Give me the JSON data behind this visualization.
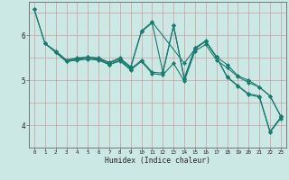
{
  "title": "",
  "xlabel": "Humidex (Indice chaleur)",
  "bg_color": "#cce8e4",
  "line_color": "#1a7a6e",
  "xlim": [
    -0.5,
    23.5
  ],
  "ylim": [
    3.5,
    6.75
  ],
  "xticks": [
    0,
    1,
    2,
    3,
    4,
    5,
    6,
    7,
    8,
    9,
    10,
    11,
    12,
    13,
    14,
    15,
    16,
    17,
    18,
    19,
    20,
    21,
    22,
    23
  ],
  "yticks": [
    4,
    5,
    6
  ],
  "lines": [
    {
      "x": [
        0,
        1,
        2,
        3,
        4,
        5,
        6,
        7,
        8,
        9,
        10,
        11,
        12,
        13,
        14,
        15,
        16,
        17,
        18,
        19,
        20,
        21,
        22,
        23
      ],
      "y": [
        6.58,
        5.82,
        5.65,
        5.45,
        5.48,
        5.52,
        5.48,
        5.38,
        5.48,
        5.28,
        6.08,
        6.28,
        5.18,
        6.22,
        5.05,
        5.72,
        5.88,
        5.52,
        5.08,
        4.88,
        4.7,
        4.65,
        3.86,
        4.18
      ]
    },
    {
      "x": [
        1,
        2,
        3,
        4,
        5,
        6,
        7,
        8,
        9,
        10,
        11,
        14,
        15,
        16,
        17,
        18,
        19,
        20,
        21,
        22,
        23
      ],
      "y": [
        5.82,
        5.65,
        5.45,
        5.5,
        5.52,
        5.5,
        5.4,
        5.5,
        5.3,
        6.1,
        6.3,
        5.38,
        5.7,
        5.87,
        5.52,
        5.35,
        5.1,
        5.0,
        4.85,
        4.65,
        4.2
      ]
    },
    {
      "x": [
        2,
        3,
        4,
        5,
        6,
        7,
        8,
        9,
        10,
        11,
        12,
        13,
        14,
        15,
        16,
        17,
        18,
        19,
        20,
        21,
        22,
        23
      ],
      "y": [
        5.63,
        5.42,
        5.47,
        5.49,
        5.47,
        5.35,
        5.45,
        5.25,
        5.45,
        5.18,
        5.16,
        6.22,
        5.02,
        5.72,
        5.87,
        5.52,
        5.07,
        4.87,
        4.68,
        4.63,
        3.84,
        4.15
      ]
    },
    {
      "x": [
        0,
        1,
        2,
        3,
        4,
        5,
        6,
        7,
        8,
        9,
        10,
        11,
        12,
        13,
        14,
        15,
        16,
        17,
        18,
        19,
        20,
        21,
        22,
        23
      ],
      "y": [
        6.58,
        5.82,
        5.62,
        5.42,
        5.45,
        5.47,
        5.45,
        5.35,
        5.43,
        5.23,
        5.42,
        5.15,
        5.12,
        5.38,
        4.98,
        5.65,
        5.8,
        5.45,
        5.28,
        5.08,
        4.95,
        4.85,
        4.65,
        4.2
      ]
    }
  ]
}
